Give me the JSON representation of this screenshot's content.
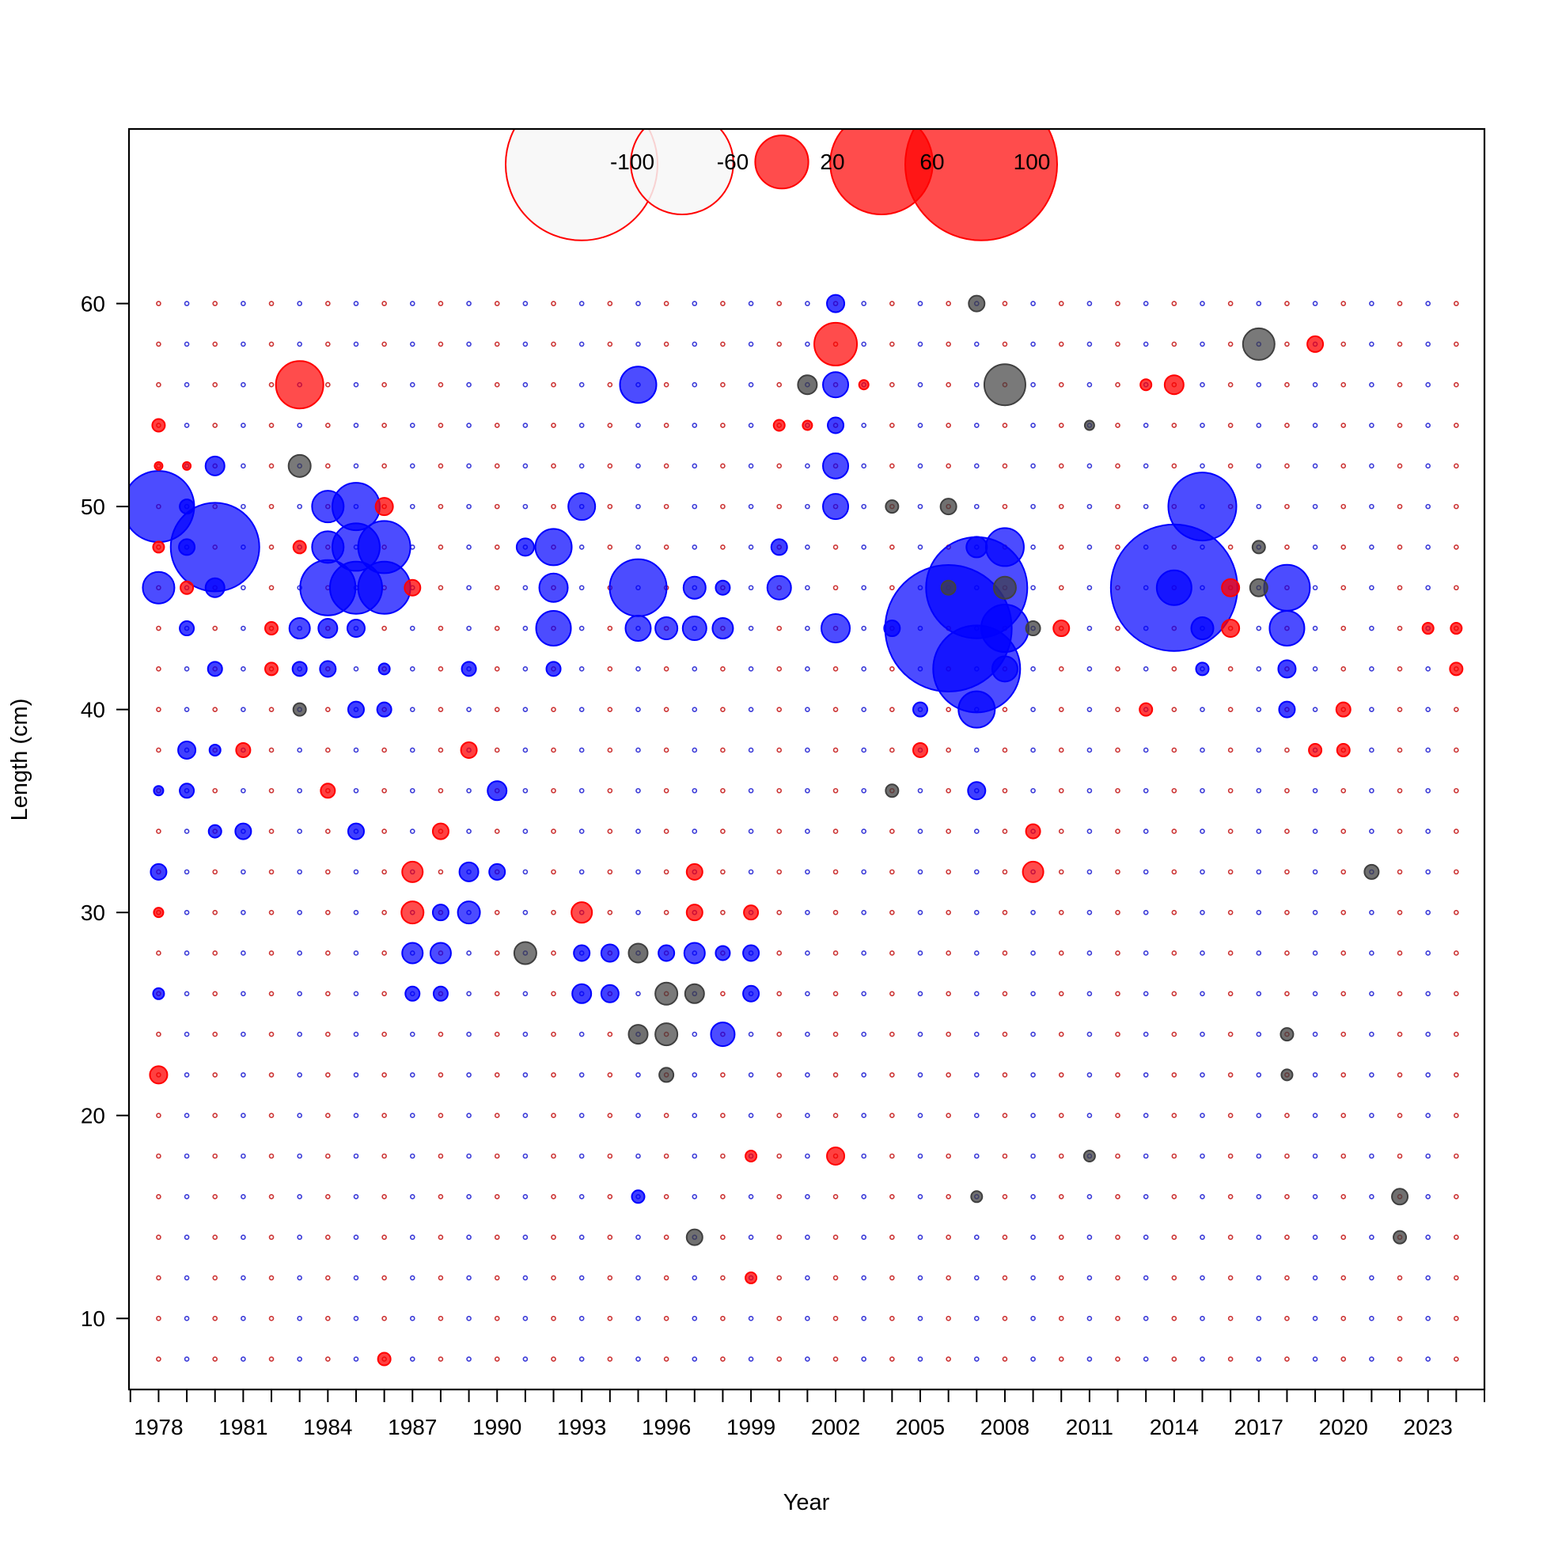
{
  "chart_data": {
    "type": "bubble",
    "xlabel": "Year",
    "ylabel": "Length (cm)",
    "xlim": [
      1976.95,
      2025.0
    ],
    "ylim": [
      6.5,
      68.6
    ],
    "x_ticks": [
      1978,
      1981,
      1984,
      1987,
      1990,
      1993,
      1996,
      1999,
      2002,
      2005,
      2008,
      2011,
      2014,
      2017,
      2020,
      2023
    ],
    "x_minor_ticks_every": 1,
    "y_ticks": [
      10,
      20,
      30,
      40,
      50,
      60
    ],
    "grid": false,
    "colors": {
      "positive": "#ff0000",
      "negative": "#0000ff",
      "other": "#404040"
    },
    "legend": {
      "position": "top-center",
      "values": [
        -100,
        -60,
        20,
        60,
        100
      ],
      "labels": [
        "-100",
        "-60",
        "20",
        "60",
        "100"
      ]
    },
    "background_years": [
      1978,
      1979,
      1980,
      1981,
      1982,
      1983,
      1984,
      1985,
      1986,
      1987,
      1988,
      1989,
      1990,
      1991,
      1992,
      1993,
      1994,
      1995,
      1996,
      1997,
      1998,
      1999,
      2000,
      2001,
      2002,
      2003,
      2004,
      2005,
      2006,
      2007,
      2008,
      2009,
      2010,
      2011,
      2012,
      2013,
      2014,
      2015,
      2016,
      2017,
      2018,
      2019,
      2020,
      2021,
      2022,
      2023,
      2024
    ],
    "background_lengths": [
      8,
      10,
      12,
      14,
      16,
      18,
      20,
      22,
      24,
      26,
      28,
      30,
      32,
      34,
      36,
      38,
      40,
      42,
      44,
      46,
      48,
      50,
      52,
      54,
      56,
      58,
      60
    ],
    "background_size": 2.5,
    "bubbles": [
      {
        "x": 1978,
        "y": 50,
        "s": 45,
        "c": "negative"
      },
      {
        "x": 1978,
        "y": 46,
        "s": 20,
        "c": "negative"
      },
      {
        "x": 1978,
        "y": 22,
        "s": 11,
        "c": "positive"
      },
      {
        "x": 1978,
        "y": 32,
        "s": 10,
        "c": "negative"
      },
      {
        "x": 1978,
        "y": 54,
        "s": 8,
        "c": "positive"
      },
      {
        "x": 1978,
        "y": 48,
        "s": 7,
        "c": "positive"
      },
      {
        "x": 1978,
        "y": 36,
        "s": 6,
        "c": "negative"
      },
      {
        "x": 1978,
        "y": 30,
        "s": 6,
        "c": "positive"
      },
      {
        "x": 1978,
        "y": 26,
        "s": 7,
        "c": "negative"
      },
      {
        "x": 1978,
        "y": 52,
        "s": 5,
        "c": "positive"
      },
      {
        "x": 1979,
        "y": 50,
        "s": 9,
        "c": "negative"
      },
      {
        "x": 1979,
        "y": 48,
        "s": 10,
        "c": "negative"
      },
      {
        "x": 1979,
        "y": 46,
        "s": 8,
        "c": "positive"
      },
      {
        "x": 1979,
        "y": 44,
        "s": 9,
        "c": "negative"
      },
      {
        "x": 1979,
        "y": 38,
        "s": 11,
        "c": "negative"
      },
      {
        "x": 1979,
        "y": 36,
        "s": 9,
        "c": "negative"
      },
      {
        "x": 1979,
        "y": 52,
        "s": 5,
        "c": "positive"
      },
      {
        "x": 1980,
        "y": 48,
        "s": 56,
        "c": "negative"
      },
      {
        "x": 1980,
        "y": 52,
        "s": 12,
        "c": "negative"
      },
      {
        "x": 1980,
        "y": 46,
        "s": 12,
        "c": "negative"
      },
      {
        "x": 1980,
        "y": 42,
        "s": 9,
        "c": "negative"
      },
      {
        "x": 1980,
        "y": 38,
        "s": 7,
        "c": "negative"
      },
      {
        "x": 1980,
        "y": 34,
        "s": 8,
        "c": "negative"
      },
      {
        "x": 1981,
        "y": 34,
        "s": 10,
        "c": "negative"
      },
      {
        "x": 1981,
        "y": 38,
        "s": 9,
        "c": "positive"
      },
      {
        "x": 1982,
        "y": 44,
        "s": 8,
        "c": "positive"
      },
      {
        "x": 1982,
        "y": 42,
        "s": 8,
        "c": "positive"
      },
      {
        "x": 1983,
        "y": 56,
        "s": 30,
        "c": "positive"
      },
      {
        "x": 1983,
        "y": 52,
        "s": 14,
        "c": "other"
      },
      {
        "x": 1983,
        "y": 48,
        "s": 8,
        "c": "positive"
      },
      {
        "x": 1983,
        "y": 44,
        "s": 13,
        "c": "negative"
      },
      {
        "x": 1983,
        "y": 42,
        "s": 9,
        "c": "negative"
      },
      {
        "x": 1983,
        "y": 40,
        "s": 8,
        "c": "other"
      },
      {
        "x": 1984,
        "y": 50,
        "s": 20,
        "c": "negative"
      },
      {
        "x": 1984,
        "y": 48,
        "s": 20,
        "c": "negative"
      },
      {
        "x": 1984,
        "y": 46,
        "s": 35,
        "c": "negative"
      },
      {
        "x": 1984,
        "y": 44,
        "s": 12,
        "c": "negative"
      },
      {
        "x": 1984,
        "y": 42,
        "s": 10,
        "c": "negative"
      },
      {
        "x": 1984,
        "y": 36,
        "s": 9,
        "c": "positive"
      },
      {
        "x": 1985,
        "y": 50,
        "s": 30,
        "c": "negative"
      },
      {
        "x": 1985,
        "y": 48,
        "s": 30,
        "c": "negative"
      },
      {
        "x": 1985,
        "y": 46,
        "s": 33,
        "c": "negative"
      },
      {
        "x": 1985,
        "y": 44,
        "s": 11,
        "c": "negative"
      },
      {
        "x": 1985,
        "y": 40,
        "s": 10,
        "c": "negative"
      },
      {
        "x": 1985,
        "y": 34,
        "s": 10,
        "c": "negative"
      },
      {
        "x": 1986,
        "y": 48,
        "s": 33,
        "c": "negative"
      },
      {
        "x": 1986,
        "y": 46,
        "s": 33,
        "c": "negative"
      },
      {
        "x": 1986,
        "y": 50,
        "s": 11,
        "c": "positive"
      },
      {
        "x": 1986,
        "y": 40,
        "s": 9,
        "c": "negative"
      },
      {
        "x": 1986,
        "y": 42,
        "s": 7,
        "c": "negative"
      },
      {
        "x": 1986,
        "y": 8,
        "s": 8,
        "c": "positive"
      },
      {
        "x": 1987,
        "y": 32,
        "s": 13,
        "c": "positive"
      },
      {
        "x": 1987,
        "y": 30,
        "s": 14,
        "c": "positive"
      },
      {
        "x": 1987,
        "y": 28,
        "s": 13,
        "c": "negative"
      },
      {
        "x": 1987,
        "y": 26,
        "s": 9,
        "c": "negative"
      },
      {
        "x": 1987,
        "y": 46,
        "s": 10,
        "c": "positive"
      },
      {
        "x": 1988,
        "y": 30,
        "s": 10,
        "c": "negative"
      },
      {
        "x": 1988,
        "y": 28,
        "s": 13,
        "c": "negative"
      },
      {
        "x": 1988,
        "y": 26,
        "s": 9,
        "c": "negative"
      },
      {
        "x": 1988,
        "y": 34,
        "s": 10,
        "c": "positive"
      },
      {
        "x": 1989,
        "y": 32,
        "s": 12,
        "c": "negative"
      },
      {
        "x": 1989,
        "y": 30,
        "s": 14,
        "c": "negative"
      },
      {
        "x": 1989,
        "y": 38,
        "s": 10,
        "c": "positive"
      },
      {
        "x": 1989,
        "y": 42,
        "s": 9,
        "c": "negative"
      },
      {
        "x": 1990,
        "y": 36,
        "s": 12,
        "c": "negative"
      },
      {
        "x": 1990,
        "y": 32,
        "s": 10,
        "c": "negative"
      },
      {
        "x": 1991,
        "y": 28,
        "s": 14,
        "c": "other"
      },
      {
        "x": 1991,
        "y": 48,
        "s": 11,
        "c": "negative"
      },
      {
        "x": 1992,
        "y": 48,
        "s": 23,
        "c": "negative"
      },
      {
        "x": 1992,
        "y": 46,
        "s": 18,
        "c": "negative"
      },
      {
        "x": 1992,
        "y": 44,
        "s": 22,
        "c": "negative"
      },
      {
        "x": 1992,
        "y": 42,
        "s": 9,
        "c": "negative"
      },
      {
        "x": 1993,
        "y": 50,
        "s": 17,
        "c": "negative"
      },
      {
        "x": 1993,
        "y": 30,
        "s": 13,
        "c": "positive"
      },
      {
        "x": 1993,
        "y": 28,
        "s": 10,
        "c": "negative"
      },
      {
        "x": 1993,
        "y": 26,
        "s": 12,
        "c": "negative"
      },
      {
        "x": 1994,
        "y": 28,
        "s": 11,
        "c": "negative"
      },
      {
        "x": 1994,
        "y": 26,
        "s": 11,
        "c": "negative"
      },
      {
        "x": 1995,
        "y": 56,
        "s": 23,
        "c": "negative"
      },
      {
        "x": 1995,
        "y": 46,
        "s": 36,
        "c": "negative"
      },
      {
        "x": 1995,
        "y": 44,
        "s": 16,
        "c": "negative"
      },
      {
        "x": 1995,
        "y": 28,
        "s": 12,
        "c": "other"
      },
      {
        "x": 1995,
        "y": 24,
        "s": 12,
        "c": "other"
      },
      {
        "x": 1995,
        "y": 16,
        "s": 8,
        "c": "negative"
      },
      {
        "x": 1996,
        "y": 44,
        "s": 14,
        "c": "negative"
      },
      {
        "x": 1996,
        "y": 26,
        "s": 14,
        "c": "other"
      },
      {
        "x": 1996,
        "y": 24,
        "s": 14,
        "c": "other"
      },
      {
        "x": 1996,
        "y": 28,
        "s": 10,
        "c": "negative"
      },
      {
        "x": 1996,
        "y": 22,
        "s": 9,
        "c": "other"
      },
      {
        "x": 1997,
        "y": 46,
        "s": 14,
        "c": "negative"
      },
      {
        "x": 1997,
        "y": 44,
        "s": 15,
        "c": "negative"
      },
      {
        "x": 1997,
        "y": 28,
        "s": 13,
        "c": "negative"
      },
      {
        "x": 1997,
        "y": 26,
        "s": 12,
        "c": "other"
      },
      {
        "x": 1997,
        "y": 14,
        "s": 10,
        "c": "other"
      },
      {
        "x": 1997,
        "y": 30,
        "s": 10,
        "c": "positive"
      },
      {
        "x": 1997,
        "y": 32,
        "s": 10,
        "c": "positive"
      },
      {
        "x": 1998,
        "y": 44,
        "s": 13,
        "c": "negative"
      },
      {
        "x": 1998,
        "y": 24,
        "s": 15,
        "c": "negative"
      },
      {
        "x": 1998,
        "y": 46,
        "s": 9,
        "c": "negative"
      },
      {
        "x": 1998,
        "y": 28,
        "s": 9,
        "c": "negative"
      },
      {
        "x": 1999,
        "y": 28,
        "s": 10,
        "c": "negative"
      },
      {
        "x": 1999,
        "y": 26,
        "s": 10,
        "c": "negative"
      },
      {
        "x": 1999,
        "y": 30,
        "s": 9,
        "c": "positive"
      },
      {
        "x": 1999,
        "y": 12,
        "s": 7,
        "c": "positive"
      },
      {
        "x": 1999,
        "y": 18,
        "s": 7,
        "c": "positive"
      },
      {
        "x": 2000,
        "y": 46,
        "s": 15,
        "c": "negative"
      },
      {
        "x": 2000,
        "y": 48,
        "s": 10,
        "c": "negative"
      },
      {
        "x": 2000,
        "y": 54,
        "s": 7,
        "c": "positive"
      },
      {
        "x": 2001,
        "y": 56,
        "s": 12,
        "c": "other"
      },
      {
        "x": 2001,
        "y": 54,
        "s": 6,
        "c": "positive"
      },
      {
        "x": 2002,
        "y": 60,
        "s": 11,
        "c": "negative"
      },
      {
        "x": 2002,
        "y": 58,
        "s": 27,
        "c": "positive"
      },
      {
        "x": 2002,
        "y": 56,
        "s": 16,
        "c": "negative"
      },
      {
        "x": 2002,
        "y": 54,
        "s": 10,
        "c": "negative"
      },
      {
        "x": 2002,
        "y": 52,
        "s": 16,
        "c": "negative"
      },
      {
        "x": 2002,
        "y": 50,
        "s": 16,
        "c": "negative"
      },
      {
        "x": 2002,
        "y": 44,
        "s": 18,
        "c": "negative"
      },
      {
        "x": 2002,
        "y": 18,
        "s": 11,
        "c": "positive"
      },
      {
        "x": 2003,
        "y": 56,
        "s": 6,
        "c": "positive"
      },
      {
        "x": 2004,
        "y": 50,
        "s": 8,
        "c": "other"
      },
      {
        "x": 2004,
        "y": 44,
        "s": 10,
        "c": "negative"
      },
      {
        "x": 2004,
        "y": 36,
        "s": 8,
        "c": "other"
      },
      {
        "x": 2005,
        "y": 40,
        "s": 9,
        "c": "negative"
      },
      {
        "x": 2005,
        "y": 38,
        "s": 9,
        "c": "positive"
      },
      {
        "x": 2006,
        "y": 46,
        "s": 9,
        "c": "other"
      },
      {
        "x": 2006,
        "y": 50,
        "s": 10,
        "c": "other"
      },
      {
        "x": 2006,
        "y": 44,
        "s": 80,
        "c": "negative"
      },
      {
        "x": 2007,
        "y": 46,
        "s": 64,
        "c": "negative"
      },
      {
        "x": 2007,
        "y": 42,
        "s": 55,
        "c": "negative"
      },
      {
        "x": 2007,
        "y": 40,
        "s": 23,
        "c": "negative"
      },
      {
        "x": 2007,
        "y": 36,
        "s": 11,
        "c": "negative"
      },
      {
        "x": 2007,
        "y": 60,
        "s": 10,
        "c": "other"
      },
      {
        "x": 2007,
        "y": 16,
        "s": 7,
        "c": "other"
      },
      {
        "x": 2007,
        "y": 48,
        "s": 13,
        "c": "negative"
      },
      {
        "x": 2008,
        "y": 56,
        "s": 26,
        "c": "other"
      },
      {
        "x": 2008,
        "y": 48,
        "s": 24,
        "c": "negative"
      },
      {
        "x": 2008,
        "y": 44,
        "s": 30,
        "c": "negative"
      },
      {
        "x": 2008,
        "y": 46,
        "s": 14,
        "c": "other"
      },
      {
        "x": 2008,
        "y": 42,
        "s": 16,
        "c": "negative"
      },
      {
        "x": 2009,
        "y": 32,
        "s": 13,
        "c": "positive"
      },
      {
        "x": 2009,
        "y": 34,
        "s": 9,
        "c": "positive"
      },
      {
        "x": 2009,
        "y": 44,
        "s": 9,
        "c": "other"
      },
      {
        "x": 2010,
        "y": 44,
        "s": 10,
        "c": "positive"
      },
      {
        "x": 2011,
        "y": 18,
        "s": 7,
        "c": "other"
      },
      {
        "x": 2011,
        "y": 54,
        "s": 6,
        "c": "other"
      },
      {
        "x": 2013,
        "y": 56,
        "s": 7,
        "c": "positive"
      },
      {
        "x": 2013,
        "y": 40,
        "s": 8,
        "c": "positive"
      },
      {
        "x": 2014,
        "y": 56,
        "s": 12,
        "c": "positive"
      },
      {
        "x": 2014,
        "y": 46,
        "s": 22,
        "c": "negative"
      },
      {
        "x": 2014,
        "y": 46,
        "s": 80,
        "c": "negative"
      },
      {
        "x": 2015,
        "y": 50,
        "s": 43,
        "c": "negative"
      },
      {
        "x": 2015,
        "y": 44,
        "s": 14,
        "c": "negative"
      },
      {
        "x": 2015,
        "y": 42,
        "s": 8,
        "c": "negative"
      },
      {
        "x": 2016,
        "y": 46,
        "s": 11,
        "c": "positive"
      },
      {
        "x": 2016,
        "y": 44,
        "s": 11,
        "c": "positive"
      },
      {
        "x": 2017,
        "y": 58,
        "s": 20,
        "c": "other"
      },
      {
        "x": 2017,
        "y": 46,
        "s": 11,
        "c": "other"
      },
      {
        "x": 2017,
        "y": 48,
        "s": 8,
        "c": "other"
      },
      {
        "x": 2018,
        "y": 46,
        "s": 29,
        "c": "negative"
      },
      {
        "x": 2018,
        "y": 44,
        "s": 22,
        "c": "negative"
      },
      {
        "x": 2018,
        "y": 42,
        "s": 11,
        "c": "negative"
      },
      {
        "x": 2018,
        "y": 40,
        "s": 10,
        "c": "negative"
      },
      {
        "x": 2018,
        "y": 24,
        "s": 8,
        "c": "other"
      },
      {
        "x": 2018,
        "y": 22,
        "s": 7,
        "c": "other"
      },
      {
        "x": 2019,
        "y": 58,
        "s": 10,
        "c": "positive"
      },
      {
        "x": 2019,
        "y": 38,
        "s": 8,
        "c": "positive"
      },
      {
        "x": 2020,
        "y": 40,
        "s": 9,
        "c": "positive"
      },
      {
        "x": 2020,
        "y": 38,
        "s": 8,
        "c": "positive"
      },
      {
        "x": 2021,
        "y": 32,
        "s": 9,
        "c": "other"
      },
      {
        "x": 2022,
        "y": 16,
        "s": 10,
        "c": "other"
      },
      {
        "x": 2022,
        "y": 14,
        "s": 8,
        "c": "other"
      },
      {
        "x": 2023,
        "y": 44,
        "s": 7,
        "c": "positive"
      },
      {
        "x": 2024,
        "y": 42,
        "s": 8,
        "c": "positive"
      },
      {
        "x": 2024,
        "y": 44,
        "s": 7,
        "c": "positive"
      }
    ]
  }
}
